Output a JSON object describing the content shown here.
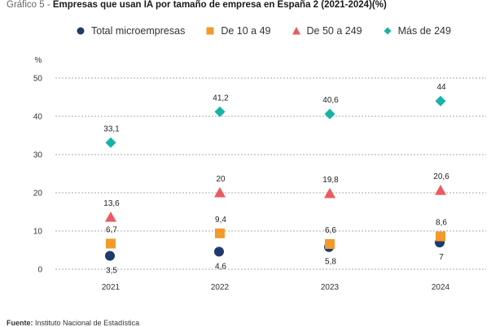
{
  "title": {
    "prefix": "Gráfico 5 -",
    "main": "Empresas que usan IA por tamaño de empresa en España 2 (2021-2024)(%)"
  },
  "source": {
    "label": "Fuente:",
    "text": "Instituto Nacional de Estadística"
  },
  "chart_data": {
    "type": "scatter",
    "title": "Empresas que usan IA por tamaño de empresa en España 2 (2021-2024)(%)",
    "ylabel": "%",
    "categories": [
      "2021",
      "2022",
      "2023",
      "2024"
    ],
    "ylim": [
      0,
      50
    ],
    "yticks": [
      0,
      10,
      20,
      30,
      40,
      50
    ],
    "grid": true,
    "legend_position": "top",
    "series": [
      {
        "name": "Total microempresas",
        "marker": "circle",
        "color": "#1f3a6e",
        "values": [
          3.5,
          4.6,
          5.8,
          7
        ],
        "labels": [
          "3,5",
          "4,6",
          "5,8",
          "7"
        ],
        "label_position": "below"
      },
      {
        "name": "De 10 a 49",
        "marker": "square",
        "color": "#f39a2b",
        "values": [
          6.7,
          9.4,
          6.6,
          8.6
        ],
        "labels": [
          "6,7",
          "9,4",
          "6,6",
          "8,6"
        ],
        "label_position": "above"
      },
      {
        "name": "De 50 a 249",
        "marker": "triangle",
        "color": "#ec5a5f",
        "values": [
          13.6,
          20,
          19.8,
          20.6
        ],
        "labels": [
          "13,6",
          "20",
          "19,8",
          "20,6"
        ],
        "label_position": "above"
      },
      {
        "name": "Más de 249",
        "marker": "diamond",
        "color": "#16b3a7",
        "values": [
          33.1,
          41.2,
          40.6,
          44
        ],
        "labels": [
          "33,1",
          "41,2",
          "40,6",
          "44"
        ],
        "label_position": "above"
      }
    ]
  }
}
